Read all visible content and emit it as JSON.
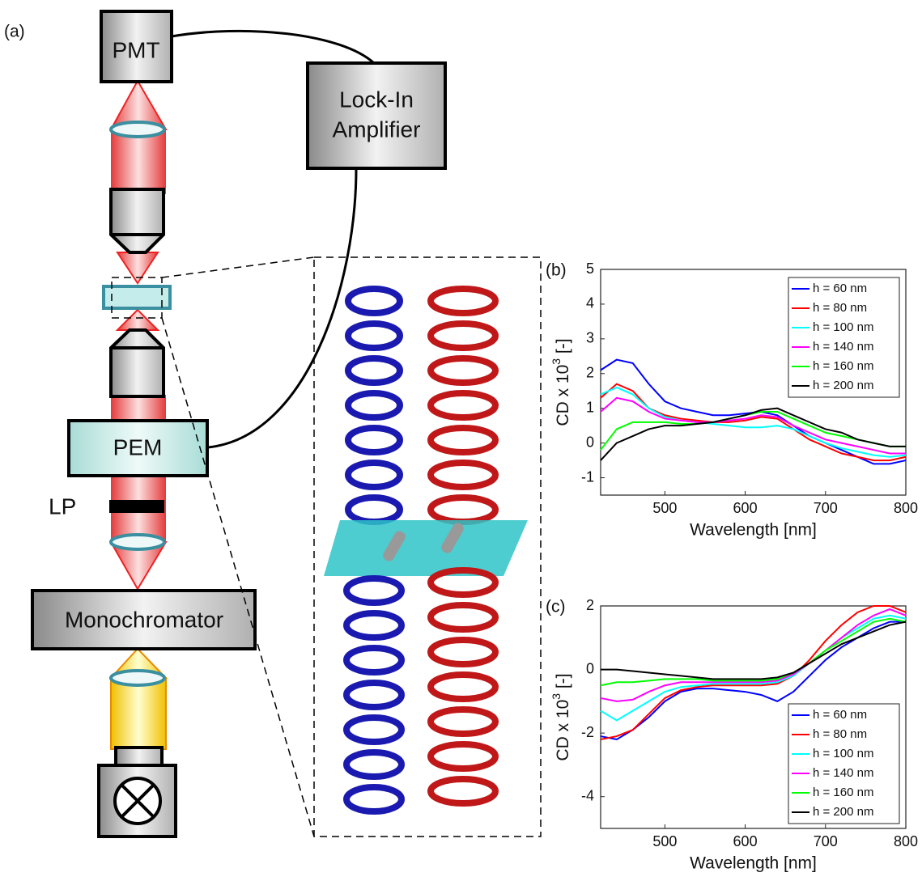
{
  "diagram": {
    "panel_label": "(a)",
    "pmt": "PMT",
    "lock_in": [
      "Lock-In",
      "Amplifier"
    ],
    "pem": "PEM",
    "lp": "LP",
    "monochromator": "Monochromator"
  },
  "chart_data": [
    {
      "type": "line",
      "panel_label": "(b)",
      "xlabel": "Wavelength [nm]",
      "ylabel": [
        "CD x 10",
        "3",
        " [-]"
      ],
      "x": [
        420,
        440,
        460,
        480,
        500,
        520,
        540,
        560,
        580,
        600,
        620,
        640,
        660,
        680,
        700,
        720,
        740,
        760,
        780,
        800
      ],
      "xlim": [
        420,
        800
      ],
      "xticks": [
        500,
        600,
        700,
        800
      ],
      "ylim": [
        -1.5,
        5
      ],
      "yticks": [
        -1,
        0,
        1,
        2,
        3,
        4,
        5
      ],
      "legend": "upper right",
      "series": [
        {
          "name": "h = 60 nm",
          "color": "#0000ff",
          "values": [
            2.1,
            2.4,
            2.3,
            1.7,
            1.2,
            1.0,
            0.9,
            0.8,
            0.8,
            0.85,
            0.9,
            0.8,
            0.5,
            0.2,
            0.0,
            -0.2,
            -0.4,
            -0.6,
            -0.6,
            -0.5
          ]
        },
        {
          "name": "h = 80 nm",
          "color": "#ff0000",
          "values": [
            1.3,
            1.7,
            1.5,
            1.0,
            0.8,
            0.7,
            0.65,
            0.6,
            0.6,
            0.65,
            0.75,
            0.7,
            0.4,
            0.1,
            -0.1,
            -0.3,
            -0.4,
            -0.5,
            -0.5,
            -0.4
          ]
        },
        {
          "name": "h = 100 nm",
          "color": "#00ffff",
          "values": [
            1.4,
            1.6,
            1.4,
            1.0,
            0.75,
            0.65,
            0.6,
            0.55,
            0.5,
            0.45,
            0.45,
            0.5,
            0.4,
            0.2,
            0.0,
            -0.15,
            -0.25,
            -0.35,
            -0.4,
            -0.35
          ]
        },
        {
          "name": "h = 140 nm",
          "color": "#ff00ff",
          "values": [
            0.9,
            1.3,
            1.2,
            0.9,
            0.7,
            0.65,
            0.6,
            0.6,
            0.65,
            0.7,
            0.8,
            0.75,
            0.5,
            0.3,
            0.1,
            0,
            -0.1,
            -0.2,
            -0.3,
            -0.3
          ]
        },
        {
          "name": "h = 160 nm",
          "color": "#00ff00",
          "values": [
            -0.2,
            0.4,
            0.6,
            0.6,
            0.6,
            0.55,
            0.55,
            0.6,
            0.7,
            0.8,
            0.9,
            0.9,
            0.7,
            0.5,
            0.3,
            0.2,
            0.1,
            0,
            -0.1,
            -0.1
          ]
        },
        {
          "name": "h = 200 nm",
          "color": "#000000",
          "values": [
            -0.5,
            0,
            0.2,
            0.4,
            0.5,
            0.5,
            0.55,
            0.6,
            0.7,
            0.8,
            0.95,
            1.0,
            0.8,
            0.6,
            0.4,
            0.3,
            0.1,
            0,
            -0.1,
            -0.1
          ]
        }
      ]
    },
    {
      "type": "line",
      "panel_label": "(c)",
      "xlabel": "Wavelength [nm]",
      "ylabel": [
        "CD x 10",
        "3",
        " [-]"
      ],
      "x": [
        420,
        440,
        460,
        480,
        500,
        520,
        540,
        560,
        580,
        600,
        620,
        640,
        660,
        680,
        700,
        720,
        740,
        760,
        780,
        800
      ],
      "xlim": [
        420,
        800
      ],
      "xticks": [
        500,
        600,
        700,
        800
      ],
      "ylim": [
        -5,
        2
      ],
      "yticks": [
        -4,
        -2,
        0,
        2
      ],
      "legend": "lower right",
      "series": [
        {
          "name": "h = 60 nm",
          "color": "#0000ff",
          "values": [
            -2.1,
            -2.2,
            -1.9,
            -1.5,
            -1.0,
            -0.7,
            -0.6,
            -0.6,
            -0.65,
            -0.7,
            -0.8,
            -1.0,
            -0.7,
            -0.2,
            0.3,
            0.7,
            1.0,
            1.3,
            1.5,
            1.5
          ]
        },
        {
          "name": "h = 80 nm",
          "color": "#ff0000",
          "values": [
            -2.2,
            -2.1,
            -1.9,
            -1.4,
            -0.9,
            -0.65,
            -0.55,
            -0.5,
            -0.5,
            -0.5,
            -0.5,
            -0.45,
            -0.2,
            0.3,
            0.9,
            1.4,
            1.8,
            2.0,
            2.0,
            1.8
          ]
        },
        {
          "name": "h = 100 nm",
          "color": "#00ffff",
          "values": [
            -1.3,
            -1.6,
            -1.3,
            -1.0,
            -0.7,
            -0.55,
            -0.5,
            -0.45,
            -0.45,
            -0.45,
            -0.45,
            -0.4,
            -0.2,
            0.2,
            0.6,
            1.0,
            1.3,
            1.6,
            1.7,
            1.6
          ]
        },
        {
          "name": "h = 140 nm",
          "color": "#ff00ff",
          "values": [
            -0.9,
            -1.0,
            -0.95,
            -0.7,
            -0.5,
            -0.4,
            -0.4,
            -0.4,
            -0.4,
            -0.4,
            -0.4,
            -0.35,
            -0.15,
            0.2,
            0.6,
            1.0,
            1.4,
            1.7,
            1.9,
            1.7
          ]
        },
        {
          "name": "h = 160 nm",
          "color": "#00ff00",
          "values": [
            -0.5,
            -0.4,
            -0.4,
            -0.35,
            -0.3,
            -0.3,
            -0.3,
            -0.35,
            -0.35,
            -0.35,
            -0.35,
            -0.3,
            -0.1,
            0.2,
            0.6,
            0.9,
            1.2,
            1.5,
            1.6,
            1.5
          ]
        },
        {
          "name": "h = 200 nm",
          "color": "#000000",
          "values": [
            0,
            0,
            -0.05,
            -0.1,
            -0.15,
            -0.2,
            -0.25,
            -0.3,
            -0.3,
            -0.3,
            -0.3,
            -0.25,
            -0.1,
            0.2,
            0.5,
            0.8,
            1.0,
            1.2,
            1.4,
            1.5
          ]
        }
      ]
    }
  ]
}
